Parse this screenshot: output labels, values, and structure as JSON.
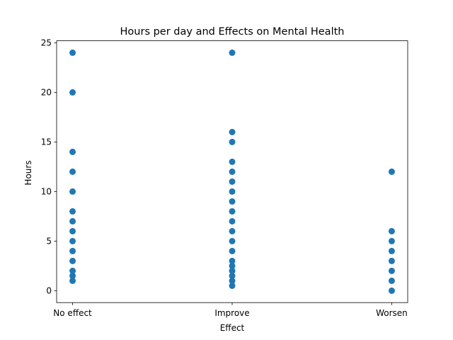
{
  "chart_data": {
    "type": "scatter",
    "title": "Hours per day and Effects on Mental Health",
    "xlabel": "Effect",
    "ylabel": "Hours",
    "categories": [
      "No effect",
      "Improve",
      "Worsen"
    ],
    "ylim": [
      -1.2,
      25.2
    ],
    "yticks": [
      0,
      5,
      10,
      15,
      20,
      25
    ],
    "grid": false,
    "color": "#1f77b4",
    "series": [
      {
        "points": [
          {
            "x": "No effect",
            "y": 24
          },
          {
            "x": "No effect",
            "y": 20
          },
          {
            "x": "No effect",
            "y": 14
          },
          {
            "x": "No effect",
            "y": 12
          },
          {
            "x": "No effect",
            "y": 10
          },
          {
            "x": "No effect",
            "y": 8
          },
          {
            "x": "No effect",
            "y": 7
          },
          {
            "x": "No effect",
            "y": 6
          },
          {
            "x": "No effect",
            "y": 5
          },
          {
            "x": "No effect",
            "y": 4
          },
          {
            "x": "No effect",
            "y": 3
          },
          {
            "x": "No effect",
            "y": 2
          },
          {
            "x": "No effect",
            "y": 1.5
          },
          {
            "x": "No effect",
            "y": 1
          },
          {
            "x": "Improve",
            "y": 24
          },
          {
            "x": "Improve",
            "y": 16
          },
          {
            "x": "Improve",
            "y": 15
          },
          {
            "x": "Improve",
            "y": 13
          },
          {
            "x": "Improve",
            "y": 12
          },
          {
            "x": "Improve",
            "y": 11
          },
          {
            "x": "Improve",
            "y": 10
          },
          {
            "x": "Improve",
            "y": 9
          },
          {
            "x": "Improve",
            "y": 8
          },
          {
            "x": "Improve",
            "y": 7
          },
          {
            "x": "Improve",
            "y": 6
          },
          {
            "x": "Improve",
            "y": 5
          },
          {
            "x": "Improve",
            "y": 4
          },
          {
            "x": "Improve",
            "y": 3
          },
          {
            "x": "Improve",
            "y": 2.5
          },
          {
            "x": "Improve",
            "y": 2
          },
          {
            "x": "Improve",
            "y": 1.5
          },
          {
            "x": "Improve",
            "y": 1
          },
          {
            "x": "Improve",
            "y": 0.5
          },
          {
            "x": "Worsen",
            "y": 12
          },
          {
            "x": "Worsen",
            "y": 6
          },
          {
            "x": "Worsen",
            "y": 5
          },
          {
            "x": "Worsen",
            "y": 4
          },
          {
            "x": "Worsen",
            "y": 3
          },
          {
            "x": "Worsen",
            "y": 2
          },
          {
            "x": "Worsen",
            "y": 1
          },
          {
            "x": "Worsen",
            "y": 0
          }
        ]
      }
    ]
  }
}
